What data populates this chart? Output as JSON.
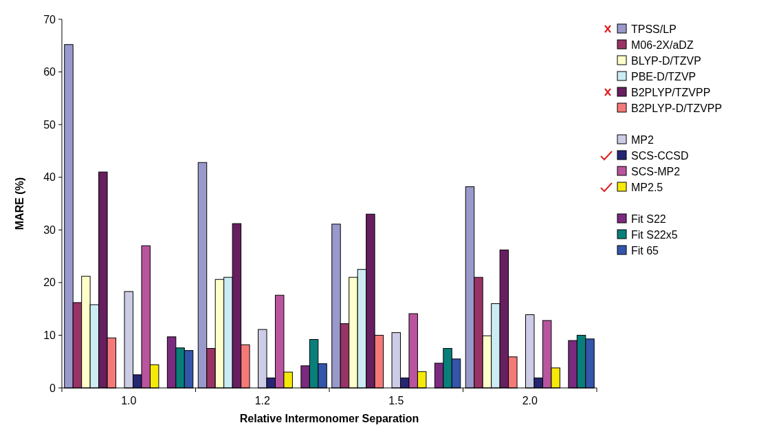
{
  "chart_data": {
    "type": "bar",
    "xlabel": "Relative Intermonomer Separation",
    "ylabel": "MARE (%)",
    "categories": [
      "1.0",
      "1.2",
      "1.5",
      "2.0"
    ],
    "ylim": [
      0,
      70
    ],
    "yticks": [
      0,
      10,
      20,
      30,
      40,
      50,
      60,
      70
    ],
    "grid": false,
    "legend": "top right",
    "series": [
      {
        "name": "TPSS/LP",
        "color": "#9999cc",
        "values": [
          65.2,
          42.8,
          31.1,
          38.2
        ]
      },
      {
        "name": "M06-2X/aDZ",
        "color": "#993366",
        "values": [
          16.2,
          7.5,
          12.2,
          21
        ]
      },
      {
        "name": "BLYP-D/TZVP",
        "color": "#ffffcc",
        "values": [
          21.2,
          20.6,
          21,
          9.9
        ]
      },
      {
        "name": "PBE-D/TZVP",
        "color": "#ccecf4",
        "values": [
          15.8,
          21,
          22.5,
          16
        ]
      },
      {
        "name": "B2PLYP/TZVPP",
        "color": "#661f5f",
        "values": [
          41,
          31.2,
          33,
          26.2
        ]
      },
      {
        "name": "B2PLYP-D/TZVPP",
        "color": "#f47a7a",
        "values": [
          9.5,
          8.2,
          10,
          5.9
        ]
      },
      {
        "name": "MP2",
        "color": "#cccce6",
        "values": [
          18.3,
          11.1,
          10.5,
          13.9
        ]
      },
      {
        "name": "SCS-CCSD",
        "color": "#262673",
        "values": [
          2.5,
          1.9,
          1.9,
          1.9
        ]
      },
      {
        "name": "SCS-MP2",
        "color": "#b9549e",
        "values": [
          27,
          17.6,
          14.1,
          12.8
        ]
      },
      {
        "name": "MP2.5",
        "color": "#f5e90a",
        "values": [
          4.4,
          3.0,
          3.1,
          3.8
        ]
      },
      {
        "name": "Fit S22",
        "color": "#7b2a7f",
        "values": [
          9.7,
          4.2,
          4.7,
          9
        ]
      },
      {
        "name": "Fit S22x5",
        "color": "#087f7a",
        "values": [
          7.6,
          9.2,
          7.5,
          10
        ]
      },
      {
        "name": "Fit 65",
        "color": "#3355aa",
        "values": [
          7.1,
          4.6,
          5.5,
          9.3
        ]
      }
    ]
  }
}
